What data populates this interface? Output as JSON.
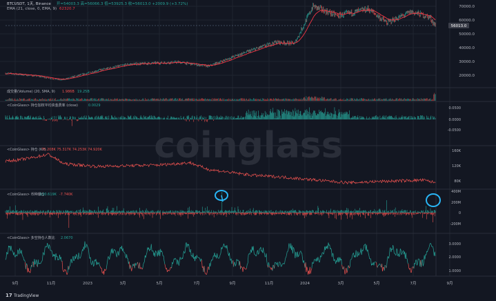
{
  "colors": {
    "bg": "#131722",
    "grid": "#1f2430",
    "separator": "#2a2e39",
    "text": "#b2b5be",
    "green": "#26a69a",
    "red": "#ef5350",
    "ema": "#f23645",
    "price_tag": "#3c3f4a",
    "current_price_line": "#6a7d91",
    "annotation": "#29b6f6",
    "watermark": "#2a2e39"
  },
  "header": {
    "symbol": "BTCUSDT, 1天, Binance",
    "ohlc": "开=54003.3  高=56066.3  低=53925.3  收=56013.0  +2009.9 (+3.72%)",
    "ema_label": "EMA (21, close, 0, EMA, 9)",
    "ema_value": "62320.7"
  },
  "price_axis": [
    "70000.0",
    "60000.0",
    "50000.0",
    "40000.0",
    "30000.0",
    "20000.0"
  ],
  "current_price_tag": "56013.0",
  "volume_pane": {
    "label": "成交量(Volume) (20, SMA, 9)",
    "v1": "1.986B",
    "v2": "19.25B"
  },
  "funding_pane": {
    "label": "<CoinGlass> 持仓加权平均资金费率 (close)",
    "value": "0.0029",
    "axis": [
      "0.0500",
      "0.0000",
      "-0.0500"
    ]
  },
  "oi_pane": {
    "label": "<CoinGlass> 持仓 (Kit)",
    "values": "75.208K  75.317K  74.253K  74.920K",
    "axis": [
      "160K",
      "120K",
      "80K"
    ]
  },
  "liq_pane": {
    "label": "<CoinGlass> 币种爆仓",
    "v1": "130.619K",
    "v2": "-7.740K",
    "axis": [
      "400M",
      "200M",
      "0",
      "-200M"
    ]
  },
  "ls_pane": {
    "label": "<CoinGlass> 多空持仓人数比",
    "value": "2.0670",
    "axis": [
      "3.0000",
      "2.0000",
      "1.0000"
    ]
  },
  "time_axis": [
    "9月",
    "11月",
    "2023",
    "3月",
    "5月",
    "7月",
    "9月",
    "11月",
    "2024",
    "3月",
    "5月",
    "7月",
    "9月"
  ],
  "watermark": "coinglass",
  "brand": {
    "name": "TradingView"
  }
}
